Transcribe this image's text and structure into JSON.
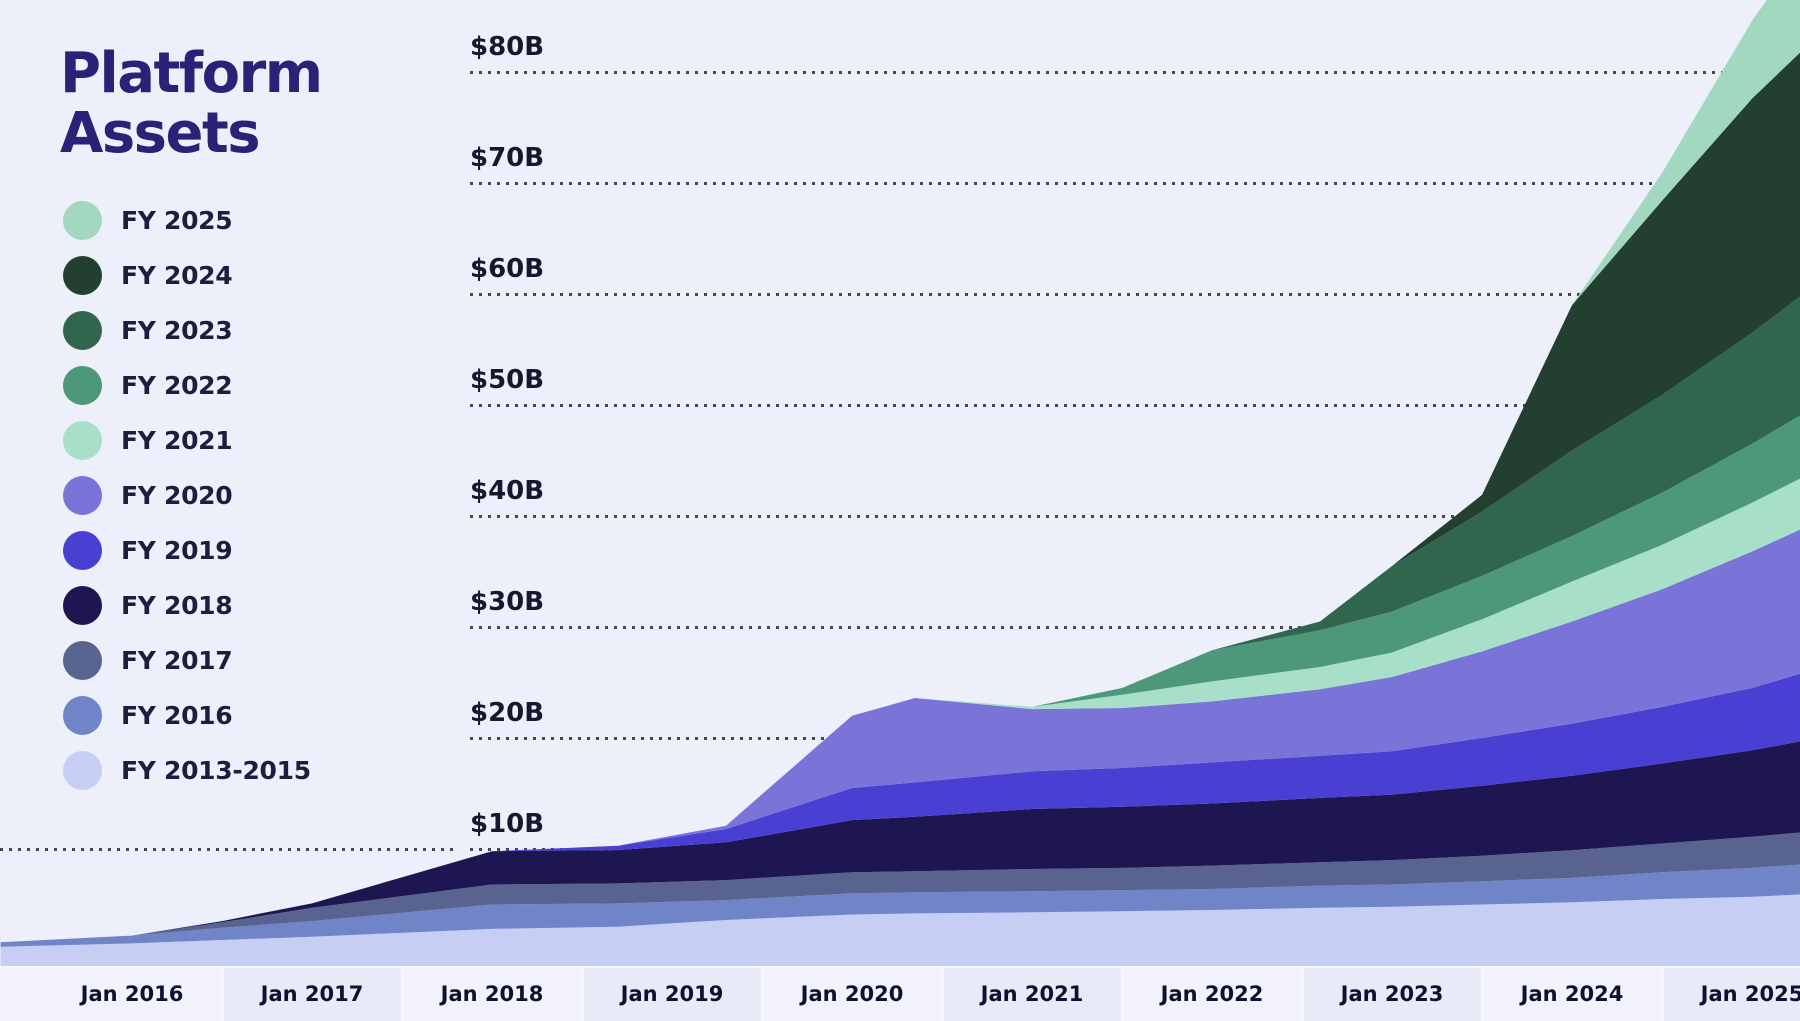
{
  "title_lines": [
    "Platform",
    "Assets"
  ],
  "legend": {
    "items": [
      {
        "label": "FY 2025",
        "color": "#a2d8bf"
      },
      {
        "label": "FY 2024",
        "color": "#223f30"
      },
      {
        "label": "FY 2023",
        "color": "#30664e"
      },
      {
        "label": "FY 2022",
        "color": "#4d9878"
      },
      {
        "label": "FY 2021",
        "color": "#a8dfc8"
      },
      {
        "label": "FY 2020",
        "color": "#7b74d8"
      },
      {
        "label": "FY 2019",
        "color": "#4a3fd3"
      },
      {
        "label": "FY 2018",
        "color": "#1e1650"
      },
      {
        "label": "FY 2017",
        "color": "#596390"
      },
      {
        "label": "FY 2016",
        "color": "#7085c8"
      },
      {
        "label": "FY 2013-2015",
        "color": "#c7cef4"
      }
    ]
  },
  "chart_data": {
    "type": "area",
    "stacked": true,
    "title": "Platform Assets",
    "unit": "USD billions",
    "ylim": [
      0,
      80
    ],
    "grid": "dotted-horizontal",
    "legend_position": "top-left",
    "y_ticks": [
      {
        "label": "$10B",
        "value": 10
      },
      {
        "label": "$20B",
        "value": 20
      },
      {
        "label": "$30B",
        "value": 30
      },
      {
        "label": "$40B",
        "value": 40
      },
      {
        "label": "$50B",
        "value": 50
      },
      {
        "label": "$60B",
        "value": 60
      },
      {
        "label": "$70B",
        "value": 70
      },
      {
        "label": "$80B",
        "value": 80
      }
    ],
    "x_tick_labels": [
      "Jan 2016",
      "Jan 2017",
      "Jan 2018",
      "Jan 2019",
      "Jan 2020",
      "Jan 2021",
      "Jan 2022",
      "Jan 2023",
      "Jan 2024",
      "Jan 2025"
    ],
    "x_tick_years": [
      2016,
      2017,
      2018,
      2019,
      2020,
      2021,
      2022,
      2023,
      2024,
      2025
    ],
    "x_years": [
      2015.27,
      2016.0,
      2016.5,
      2017.0,
      2018.0,
      2018.7,
      2019.3,
      2020.0,
      2020.35,
      2021.0,
      2021.5,
      2022.0,
      2022.6,
      2023.0,
      2023.5,
      2024.0,
      2024.5,
      2025.0,
      2025.27
    ],
    "series": [
      {
        "name": "FY 2013-2015",
        "color": "#c7cef4",
        "values": [
          1.2,
          1.5,
          1.8,
          2.1,
          2.8,
          3.0,
          3.6,
          4.1,
          4.2,
          4.3,
          4.4,
          4.5,
          4.7,
          4.8,
          5.0,
          5.2,
          5.5,
          5.7,
          5.9
        ]
      },
      {
        "name": "FY 2016",
        "color": "#7085c8",
        "values": [
          0.4,
          0.7,
          1.1,
          1.4,
          2.2,
          2.1,
          1.8,
          1.9,
          1.9,
          1.9,
          1.9,
          1.9,
          2.0,
          2.0,
          2.1,
          2.2,
          2.4,
          2.6,
          2.7
        ]
      },
      {
        "name": "FY 2017",
        "color": "#596390",
        "values": [
          0,
          0,
          0.5,
          1.2,
          1.8,
          1.8,
          1.8,
          1.9,
          1.9,
          2.0,
          2.0,
          2.1,
          2.1,
          2.2,
          2.3,
          2.5,
          2.6,
          2.8,
          2.9
        ]
      },
      {
        "name": "FY 2018",
        "color": "#1e1650",
        "values": [
          0,
          0,
          0.1,
          0.4,
          3.0,
          3.0,
          3.4,
          4.7,
          4.9,
          5.4,
          5.5,
          5.6,
          5.8,
          5.9,
          6.3,
          6.7,
          7.2,
          7.8,
          8.2
        ]
      },
      {
        "name": "FY 2019",
        "color": "#4a3fd3",
        "values": [
          0,
          0,
          0,
          0,
          0,
          0.4,
          1.2,
          2.9,
          3.1,
          3.4,
          3.5,
          3.7,
          3.8,
          3.9,
          4.3,
          4.7,
          5.1,
          5.6,
          6.1
        ]
      },
      {
        "name": "FY 2020",
        "color": "#7b74d8",
        "values": [
          0,
          0,
          0,
          0,
          0,
          0,
          0.3,
          6.5,
          7.6,
          5.6,
          5.4,
          5.5,
          6.0,
          6.7,
          7.8,
          9.2,
          10.6,
          12.3,
          13.0
        ]
      },
      {
        "name": "FY 2021",
        "color": "#a8dfc8",
        "values": [
          0,
          0,
          0,
          0,
          0,
          0,
          0,
          0,
          0,
          0.2,
          1.2,
          1.8,
          2.0,
          2.2,
          2.9,
          3.6,
          4.0,
          4.4,
          4.6
        ]
      },
      {
        "name": "FY 2022",
        "color": "#4d9878",
        "values": [
          0,
          0,
          0,
          0,
          0,
          0,
          0,
          0,
          0,
          0,
          0.6,
          2.8,
          3.3,
          3.7,
          3.9,
          4.1,
          4.7,
          5.3,
          5.7
        ]
      },
      {
        "name": "FY 2023",
        "color": "#30664e",
        "values": [
          0,
          0,
          0,
          0,
          0,
          0,
          0,
          0,
          0,
          0,
          0,
          0,
          0.8,
          4.1,
          5.8,
          7.7,
          8.8,
          10.0,
          10.7
        ]
      },
      {
        "name": "FY 2024",
        "color": "#223f30",
        "values": [
          0,
          0,
          0,
          0,
          0,
          0,
          0,
          0,
          0,
          0,
          0,
          0,
          0,
          0,
          1.5,
          13.1,
          17.5,
          21.1,
          22.0
        ]
      },
      {
        "name": "FY 2025",
        "color": "#a2d8bf",
        "values": [
          0,
          0,
          0,
          0,
          0,
          0,
          0,
          0,
          0,
          0,
          0,
          0,
          0,
          0,
          0,
          0,
          2.5,
          7.0,
          9.0
        ]
      }
    ]
  }
}
